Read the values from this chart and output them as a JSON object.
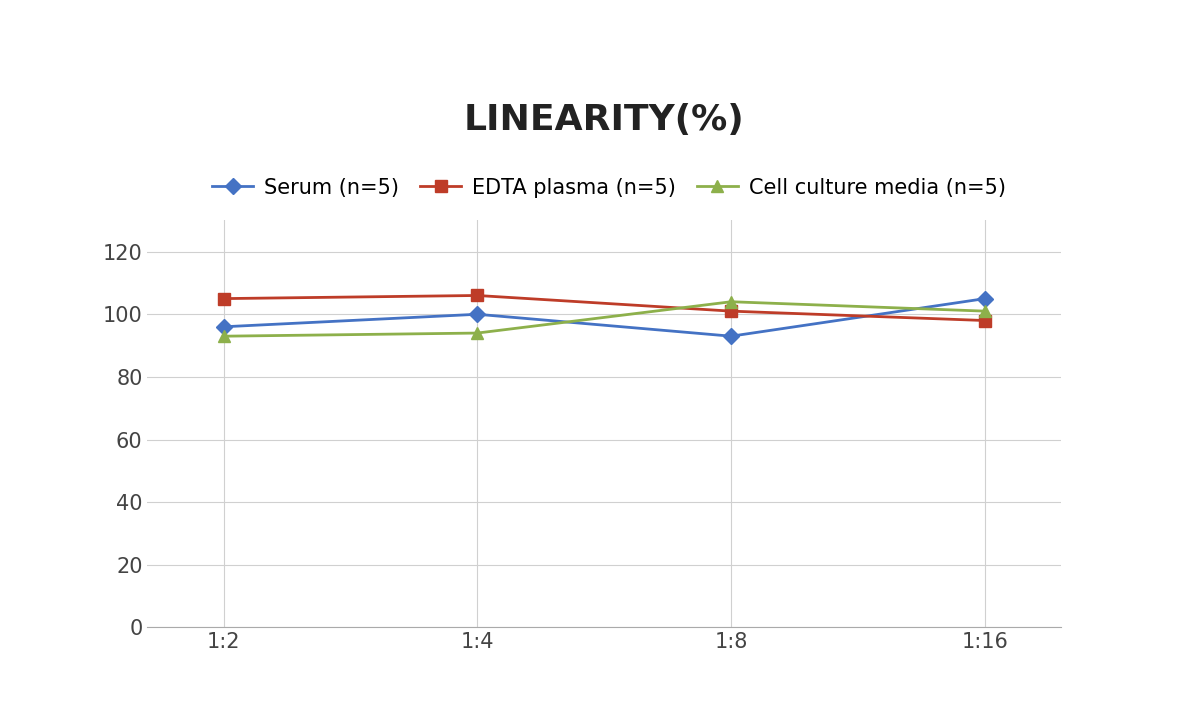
{
  "title": "LINEARITY(%)",
  "x_labels": [
    "1:2",
    "1:4",
    "1:8",
    "1:16"
  ],
  "x_positions": [
    0,
    1,
    2,
    3
  ],
  "series": [
    {
      "label": "Serum (n=5)",
      "values": [
        96,
        100,
        93,
        105
      ],
      "color": "#4472C4",
      "marker": "D",
      "marker_size": 8,
      "linewidth": 2
    },
    {
      "label": "EDTA plasma (n=5)",
      "values": [
        105,
        106,
        101,
        98
      ],
      "color": "#BE3C28",
      "marker": "s",
      "marker_size": 8,
      "linewidth": 2
    },
    {
      "label": "Cell culture media (n=5)",
      "values": [
        93,
        94,
        104,
        101
      ],
      "color": "#8DB04B",
      "marker": "^",
      "marker_size": 8,
      "linewidth": 2
    }
  ],
  "ylim": [
    0,
    130
  ],
  "yticks": [
    0,
    20,
    40,
    60,
    80,
    100,
    120
  ],
  "title_fontsize": 26,
  "legend_fontsize": 15,
  "tick_fontsize": 15,
  "background_color": "#ffffff",
  "grid_color": "#d0d0d0",
  "grid_alpha": 1.0
}
